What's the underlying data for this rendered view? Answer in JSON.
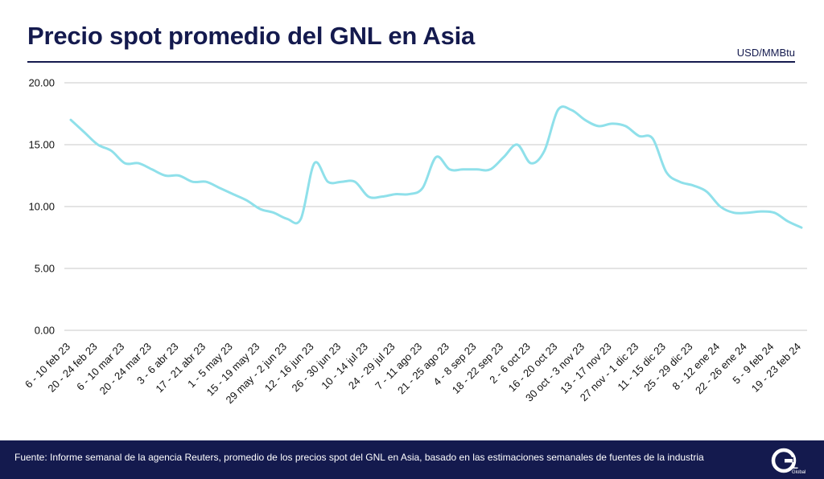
{
  "header": {
    "title": "Precio spot promedio del GNL en Asia",
    "unit": "USD/MMBtu"
  },
  "footer": {
    "source": "Fuente: Informe semanal de la agencia Reuters, promedio de los precios spot del GNL en Asia, basado en las estimaciones semanales de fuentes de la industria",
    "logo_text": "GNL",
    "logo_subtext": "Global"
  },
  "colors": {
    "line": "#8fe0ea",
    "grid": "#c8c8c8",
    "navy": "#141a4e"
  },
  "chart_data": {
    "type": "line",
    "title": "Precio spot promedio del GNL en Asia",
    "xlabel": "",
    "ylabel": "USD/MMBtu",
    "ylim": [
      0,
      20
    ],
    "yticks": [
      "0.00",
      "5.00",
      "10.00",
      "15.00",
      "20.00"
    ],
    "grid": true,
    "x_tick_labels": [
      "6 - 10 feb 23",
      "20 - 24 feb 23",
      "6 - 10 mar 23",
      "20 - 24 mar 23",
      "3 - 6 abr 23",
      "17 - 21 abr 23",
      "1 - 5 may 23",
      "15 - 19 may 23",
      "29 may - 2 jun 23",
      "12 - 16 jun 23",
      "26 - 30 jun 23",
      "10 - 14 jul 23",
      "24 - 29 jul 23",
      "7 - 11 ago 23",
      "21 - 25 ago 23",
      "4 - 8 sep 23",
      "18 - 22 sep 23",
      "2 - 6 oct 23",
      "16 - 20 oct 23",
      "30 oct - 3 nov 23",
      "13 - 17 nov 23",
      "27 nov - 1 dic 23",
      "11 - 15 dic 23",
      "25 - 29 dic 23",
      "8 - 12 ene 24",
      "22 - 26 ene 24",
      "5 - 9 feb 24",
      "19 - 23 feb 24"
    ],
    "series": [
      {
        "values": [
          17.0,
          16.0,
          15.0,
          14.5,
          13.5,
          13.5,
          13.0,
          12.5,
          12.5,
          12.0,
          12.0,
          11.5,
          11.0,
          10.5,
          9.8,
          9.5,
          9.0,
          9.0,
          13.5,
          12.0,
          12.0,
          12.0,
          10.8,
          10.8,
          11.0,
          11.0,
          11.5,
          14.0,
          13.0,
          13.0,
          13.0,
          13.0,
          14.0,
          15.0,
          13.5,
          14.5,
          17.8,
          17.8,
          17.0,
          16.5,
          16.7,
          16.5,
          15.7,
          15.5,
          12.8,
          12.0,
          11.7,
          11.2,
          10.0,
          9.5,
          9.5,
          9.6,
          9.5,
          8.8,
          8.3
        ]
      }
    ]
  }
}
